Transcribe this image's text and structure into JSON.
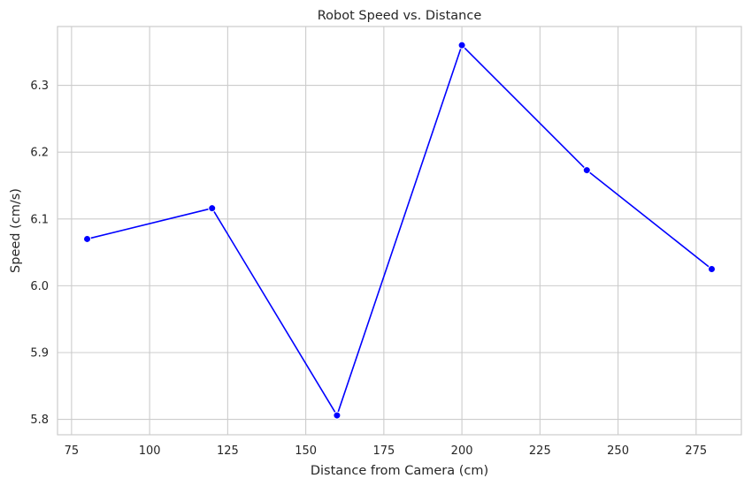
{
  "chart_data": {
    "type": "line",
    "title": "Robot Speed vs. Distance",
    "xlabel": "Distance from Camera (cm)",
    "ylabel": "Speed (cm/s)",
    "x": [
      80,
      120,
      160,
      200,
      240,
      280
    ],
    "series": [
      {
        "name": "Speed",
        "values": [
          6.07,
          6.116,
          5.806,
          6.36,
          6.173,
          6.025
        ]
      }
    ],
    "xlim": [
      70.5,
      289.5
    ],
    "ylim": [
      5.777,
      6.388
    ],
    "xticks": [
      75,
      100,
      125,
      150,
      175,
      200,
      225,
      250,
      275
    ],
    "yticks": [
      5.8,
      5.9,
      6.0,
      6.1,
      6.2,
      6.3
    ],
    "xtick_labels": [
      "75",
      "100",
      "125",
      "150",
      "175",
      "200",
      "225",
      "250",
      "275"
    ],
    "ytick_labels": [
      "5.8",
      "5.9",
      "6.0",
      "6.1",
      "6.2",
      "6.3"
    ],
    "grid": true,
    "line_color": "#0000ff",
    "grid_color": "#cccccc",
    "spine_color": "#cccccc",
    "text_color": "#262626"
  }
}
